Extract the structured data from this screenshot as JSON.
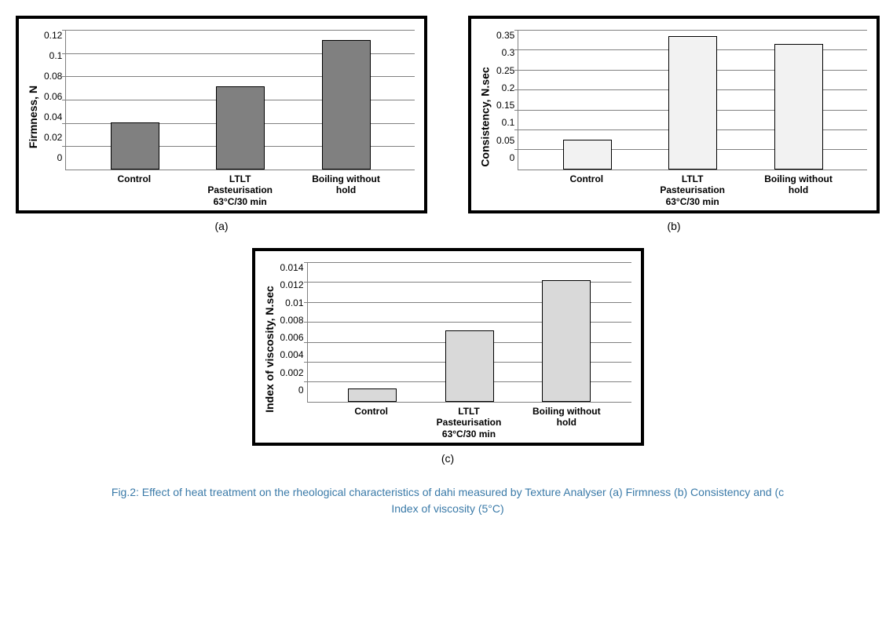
{
  "charts": {
    "a": {
      "type": "bar",
      "ylabel": "Firmness, N",
      "categories": [
        "Control",
        "LTLT Pasteurisation 63°C/30 min",
        "Boiling without hold"
      ],
      "values": [
        0.039,
        0.07,
        0.11
      ],
      "ylim": [
        0,
        0.12
      ],
      "ytick_step": 0.02,
      "yticks": [
        "0.12",
        "0.1",
        "0.08",
        "0.06",
        "0.04",
        "0.02",
        "0"
      ],
      "bar_color": "#808080",
      "background_color": "#ffffff",
      "grid_color": "#808080",
      "label_fontsize": 14,
      "tick_fontsize": 12,
      "subcaption": "(a)"
    },
    "b": {
      "type": "bar",
      "ylabel": "Consistency, N.sec",
      "categories": [
        "Control",
        "LTLT Pasteurisation 63°C/30 min",
        "Boiling without hold"
      ],
      "values": [
        0.07,
        0.33,
        0.31
      ],
      "ylim": [
        0,
        0.35
      ],
      "ytick_step": 0.05,
      "yticks": [
        "0.35",
        "0.3",
        "0.25",
        "0.2",
        "0.15",
        "0.1",
        "0.05",
        "0"
      ],
      "bar_color": "#f2f2f2",
      "background_color": "#ffffff",
      "grid_color": "#808080",
      "label_fontsize": 14,
      "tick_fontsize": 12,
      "subcaption": "(b)"
    },
    "c": {
      "type": "bar",
      "ylabel": "Index of viscosity, N.sec",
      "categories": [
        "Control",
        "LTLT Pasteurisation 63°C/30 min",
        "Boiling without hold"
      ],
      "values": [
        0.0012,
        0.007,
        0.012
      ],
      "ylim": [
        0,
        0.014
      ],
      "ytick_step": 0.002,
      "yticks": [
        "0.014",
        "0.012",
        "0.01",
        "0.008",
        "0.006",
        "0.004",
        "0.002",
        "0"
      ],
      "bar_color": "#d9d9d9",
      "background_color": "#ffffff",
      "grid_color": "#808080",
      "label_fontsize": 14,
      "tick_fontsize": 12,
      "subcaption": "(c)"
    }
  },
  "caption_line1": "Fig.2: Effect of heat treatment on the rheological characteristics of dahi measured by Texture Analyser (a) Firmness (b) Consistency and (c",
  "caption_line2": "Index of viscosity (5°C)"
}
